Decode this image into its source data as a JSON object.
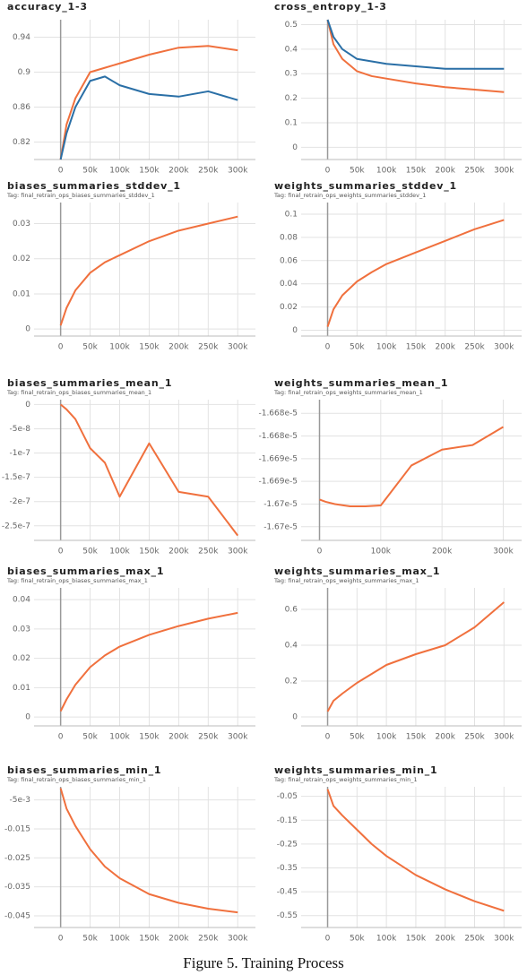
{
  "caption": "Figure 5. Training Process",
  "chart_data": [
    {
      "type": "line",
      "title": "accuracy_1-3",
      "x": [
        0,
        10000,
        25000,
        50000,
        75000,
        100000,
        150000,
        200000,
        250000,
        300000
      ],
      "series": [
        {
          "color": "#f0703d",
          "values": [
            0.8,
            0.84,
            0.87,
            0.9,
            0.905,
            0.91,
            0.92,
            0.928,
            0.93,
            0.925
          ]
        },
        {
          "color": "#2a6fa6",
          "values": [
            0.8,
            0.83,
            0.86,
            0.89,
            0.895,
            0.885,
            0.875,
            0.872,
            0.878,
            0.868
          ]
        }
      ],
      "xlim": [
        -45000,
        330000
      ],
      "ylim": [
        0.8,
        0.96
      ],
      "xticks": [
        0,
        {
          "value": 50000,
          "label": "50k"
        },
        {
          "value": 100000,
          "label": "100k"
        },
        {
          "value": 150000,
          "label": "150k"
        },
        {
          "value": 200000,
          "label": "200k"
        },
        {
          "value": 250000,
          "label": "250k"
        },
        {
          "value": 300000,
          "label": "300k"
        }
      ],
      "yticks": [
        0.82,
        0.86,
        0.9,
        0.94
      ],
      "grid": true
    },
    {
      "type": "line",
      "title": "cross_entropy_1-3",
      "x": [
        0,
        10000,
        25000,
        50000,
        75000,
        100000,
        150000,
        200000,
        250000,
        300000
      ],
      "series": [
        {
          "color": "#f0703d",
          "values": [
            0.52,
            0.42,
            0.36,
            0.31,
            0.29,
            0.28,
            0.26,
            0.245,
            0.235,
            0.225
          ]
        },
        {
          "color": "#2a6fa6",
          "values": [
            0.52,
            0.45,
            0.4,
            0.36,
            0.35,
            0.34,
            0.33,
            0.32,
            0.32,
            0.32
          ]
        }
      ],
      "xlim": [
        -45000,
        330000
      ],
      "ylim": [
        -0.05,
        0.52
      ],
      "xticks": [
        0,
        {
          "value": 50000,
          "label": "50k"
        },
        {
          "value": 100000,
          "label": "100k"
        },
        {
          "value": 150000,
          "label": "150k"
        },
        {
          "value": 200000,
          "label": "200k"
        },
        {
          "value": 250000,
          "label": "250k"
        },
        {
          "value": 300000,
          "label": "300k"
        }
      ],
      "yticks": [
        0,
        0.1,
        0.2,
        0.3,
        0.4,
        0.5
      ],
      "grid": true
    },
    {
      "type": "line",
      "title": "biases_summaries_stddev_1",
      "tag": "Tag: final_retrain_ops_biases_summaries_stddev_1",
      "x": [
        0,
        10000,
        25000,
        50000,
        75000,
        100000,
        150000,
        200000,
        250000,
        300000
      ],
      "series": [
        {
          "color": "#f0703d",
          "values": [
            0.001,
            0.006,
            0.011,
            0.016,
            0.019,
            0.021,
            0.025,
            0.028,
            0.03,
            0.032
          ]
        }
      ],
      "xlim": [
        -45000,
        330000
      ],
      "ylim": [
        -0.002,
        0.036
      ],
      "xticks": [
        0,
        {
          "value": 50000,
          "label": "50k"
        },
        {
          "value": 100000,
          "label": "100k"
        },
        {
          "value": 150000,
          "label": "150k"
        },
        {
          "value": 200000,
          "label": "200k"
        },
        {
          "value": 250000,
          "label": "250k"
        },
        {
          "value": 300000,
          "label": "300k"
        }
      ],
      "yticks": [
        0,
        0.01,
        0.02,
        0.03
      ],
      "grid": true
    },
    {
      "type": "line",
      "title": "weights_summaries_stddev_1",
      "tag": "Tag: final_retrain_ops_weights_summaries_stddev_1",
      "x": [
        0,
        10000,
        25000,
        50000,
        75000,
        100000,
        150000,
        200000,
        250000,
        300000
      ],
      "series": [
        {
          "color": "#f0703d",
          "values": [
            0.003,
            0.018,
            0.03,
            0.042,
            0.05,
            0.057,
            0.067,
            0.077,
            0.087,
            0.095
          ]
        }
      ],
      "xlim": [
        -45000,
        330000
      ],
      "ylim": [
        -0.005,
        0.11
      ],
      "xticks": [
        0,
        {
          "value": 50000,
          "label": "50k"
        },
        {
          "value": 100000,
          "label": "100k"
        },
        {
          "value": 150000,
          "label": "150k"
        },
        {
          "value": 200000,
          "label": "200k"
        },
        {
          "value": 250000,
          "label": "250k"
        },
        {
          "value": 300000,
          "label": "300k"
        }
      ],
      "yticks": [
        0,
        0.02,
        0.04,
        0.06,
        0.08,
        0.1
      ],
      "grid": true
    },
    {
      "type": "line",
      "title": "biases_summaries_mean_1",
      "tag": "Tag: final_retrain_ops_biases_summaries_mean_1",
      "x": [
        0,
        10000,
        25000,
        50000,
        75000,
        100000,
        150000,
        200000,
        250000,
        300000
      ],
      "series": [
        {
          "color": "#f0703d",
          "values": [
            0,
            -1e-08,
            -3e-08,
            -9e-08,
            -1.2e-07,
            -1.9e-07,
            -8e-08,
            -1.8e-07,
            -1.9e-07,
            -2.7e-07
          ]
        }
      ],
      "xlim": [
        -45000,
        330000
      ],
      "ylim": [
        -2.8e-07,
        1e-08
      ],
      "xticks": [
        0,
        {
          "value": 50000,
          "label": "50k"
        },
        {
          "value": 100000,
          "label": "100k"
        },
        {
          "value": 150000,
          "label": "150k"
        },
        {
          "value": 200000,
          "label": "200k"
        },
        {
          "value": 250000,
          "label": "250k"
        },
        {
          "value": 300000,
          "label": "300k"
        }
      ],
      "yticks": [
        0,
        {
          "value": -5e-08,
          "label": "-5e-8"
        },
        {
          "value": -1e-07,
          "label": "-1e-7"
        },
        {
          "value": -1.5e-07,
          "label": "-1.5e-7"
        },
        {
          "value": -2e-07,
          "label": "-2e-7"
        },
        {
          "value": -2.5e-07,
          "label": "-2.5e-7"
        }
      ],
      "grid": true
    },
    {
      "type": "line",
      "title": "weights_summaries_mean_1",
      "tag": "Tag: final_retrain_ops_weights_summaries_mean_1",
      "x": [
        0,
        10000,
        25000,
        50000,
        75000,
        100000,
        150000,
        200000,
        250000,
        300000
      ],
      "series": [
        {
          "color": "#f0703d",
          "values": [
            -1.6699e-05,
            -1.66995e-05,
            -1.67e-05,
            -1.67005e-05,
            -1.67005e-05,
            -1.67003e-05,
            -1.66915e-05,
            -1.6688e-05,
            -1.6687e-05,
            -1.6683e-05
          ]
        }
      ],
      "xlim": [
        -30000,
        330000
      ],
      "ylim": [
        -1.6708e-05,
        -1.6677e-05
      ],
      "xticks": [
        0,
        {
          "value": 100000,
          "label": "100k"
        },
        {
          "value": 200000,
          "label": "200k"
        },
        {
          "value": 300000,
          "label": "300k"
        }
      ],
      "yticks": [
        {
          "value": -1.668e-05,
          "label": "-1.668e-5"
        },
        {
          "value": -1.6685e-05,
          "label": "-1.668e-5"
        },
        {
          "value": -1.669e-05,
          "label": "-1.669e-5"
        },
        {
          "value": -1.6695e-05,
          "label": "-1.669e-5"
        },
        {
          "value": -1.67e-05,
          "label": "-1.67e-5"
        },
        {
          "value": -1.6705e-05,
          "label": "-1.67e-5"
        }
      ],
      "grid": true
    },
    {
      "type": "line",
      "title": "biases_summaries_max_1",
      "tag": "Tag: final_retrain_ops_biases_summaries_max_1",
      "x": [
        0,
        10000,
        25000,
        50000,
        75000,
        100000,
        150000,
        200000,
        250000,
        300000
      ],
      "series": [
        {
          "color": "#f0703d",
          "values": [
            0.002,
            0.006,
            0.011,
            0.017,
            0.021,
            0.024,
            0.028,
            0.031,
            0.0335,
            0.0355
          ]
        }
      ],
      "xlim": [
        -45000,
        330000
      ],
      "ylim": [
        -0.003,
        0.044
      ],
      "xticks": [
        0,
        {
          "value": 50000,
          "label": "50k"
        },
        {
          "value": 100000,
          "label": "100k"
        },
        {
          "value": 150000,
          "label": "150k"
        },
        {
          "value": 200000,
          "label": "200k"
        },
        {
          "value": 250000,
          "label": "250k"
        },
        {
          "value": 300000,
          "label": "300k"
        }
      ],
      "yticks": [
        0,
        0.01,
        0.02,
        0.03,
        0.04
      ],
      "grid": true
    },
    {
      "type": "line",
      "title": "weights_summaries_max_1",
      "tag": "Tag: final_retrain_ops_weights_summaries_max_1",
      "x": [
        0,
        10000,
        25000,
        50000,
        75000,
        100000,
        150000,
        200000,
        250000,
        300000
      ],
      "series": [
        {
          "color": "#f0703d",
          "values": [
            0.03,
            0.09,
            0.13,
            0.19,
            0.24,
            0.29,
            0.35,
            0.4,
            0.5,
            0.64
          ]
        }
      ],
      "xlim": [
        -45000,
        330000
      ],
      "ylim": [
        -0.05,
        0.72
      ],
      "xticks": [
        0,
        {
          "value": 50000,
          "label": "50k"
        },
        {
          "value": 100000,
          "label": "100k"
        },
        {
          "value": 150000,
          "label": "150k"
        },
        {
          "value": 200000,
          "label": "200k"
        },
        {
          "value": 250000,
          "label": "250k"
        },
        {
          "value": 300000,
          "label": "300k"
        }
      ],
      "yticks": [
        0,
        0.2,
        0.4,
        0.6
      ],
      "grid": true
    },
    {
      "type": "line",
      "title": "biases_summaries_min_1",
      "tag": "Tag: final_retrain_ops_biases_summaries_min_1",
      "x": [
        0,
        10000,
        25000,
        50000,
        75000,
        100000,
        150000,
        200000,
        250000,
        300000
      ],
      "series": [
        {
          "color": "#f0703d",
          "values": [
            -0.001,
            -0.008,
            -0.014,
            -0.022,
            -0.028,
            -0.032,
            -0.0375,
            -0.0405,
            -0.0425,
            -0.0438
          ]
        }
      ],
      "xlim": [
        -45000,
        330000
      ],
      "ylim": [
        -0.049,
        -0.0005
      ],
      "xticks": [
        0,
        {
          "value": 50000,
          "label": "50k"
        },
        {
          "value": 100000,
          "label": "100k"
        },
        {
          "value": 150000,
          "label": "150k"
        },
        {
          "value": 200000,
          "label": "200k"
        },
        {
          "value": 250000,
          "label": "250k"
        },
        {
          "value": 300000,
          "label": "300k"
        }
      ],
      "yticks": [
        {
          "value": -0.005,
          "label": "-5e-3"
        },
        -0.015,
        -0.025,
        -0.035,
        -0.045
      ],
      "grid": true
    },
    {
      "type": "line",
      "title": "weights_summaries_min_1",
      "tag": "Tag: final_retrain_ops_weights_summaries_min_1",
      "x": [
        0,
        10000,
        25000,
        50000,
        75000,
        100000,
        150000,
        200000,
        250000,
        300000
      ],
      "series": [
        {
          "color": "#f0703d",
          "values": [
            -0.02,
            -0.09,
            -0.13,
            -0.19,
            -0.25,
            -0.3,
            -0.38,
            -0.44,
            -0.49,
            -0.53
          ]
        }
      ],
      "xlim": [
        -45000,
        330000
      ],
      "ylim": [
        -0.6,
        -0.01
      ],
      "xticks": [
        0,
        {
          "value": 50000,
          "label": "50k"
        },
        {
          "value": 100000,
          "label": "100k"
        },
        {
          "value": 150000,
          "label": "150k"
        },
        {
          "value": 200000,
          "label": "200k"
        },
        {
          "value": 250000,
          "label": "250k"
        },
        {
          "value": 300000,
          "label": "300k"
        }
      ],
      "yticks": [
        -0.05,
        -0.15,
        -0.25,
        -0.35,
        -0.45,
        -0.55
      ],
      "grid": true
    }
  ]
}
